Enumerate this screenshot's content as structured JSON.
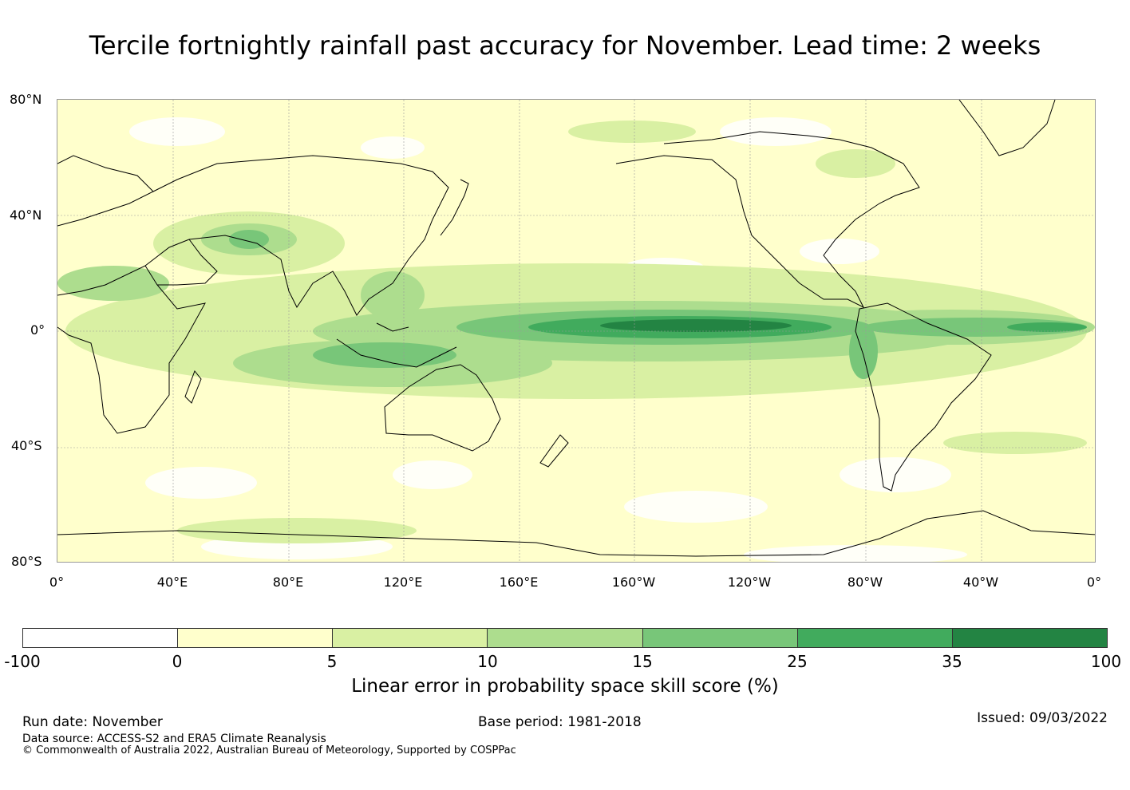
{
  "title": "Tercile fortnightly rainfall past accuracy for November. Lead time: 2 weeks",
  "map": {
    "lat_labels": [
      "80°N",
      "40°N",
      "0°",
      "40°S",
      "80°S"
    ],
    "lon_labels": [
      "0°",
      "40°E",
      "80°E",
      "120°E",
      "160°E",
      "160°W",
      "120°W",
      "80°W",
      "40°W",
      "0°"
    ]
  },
  "colorbar": {
    "ticks": [
      "-100",
      "0",
      "5",
      "10",
      "15",
      "25",
      "35",
      "100"
    ],
    "colors": [
      "#ffffff",
      "#ffffcc",
      "#d9f0a3",
      "#addd8e",
      "#78c679",
      "#41ab5d",
      "#238443"
    ],
    "label": "Linear error in probability space skill score (%)"
  },
  "footer": {
    "run_date": "Run date: November",
    "base_period": "Base period: 1981-2018",
    "issued": "Issued: 09/03/2022",
    "data_source": "Data source: ACCESS-S2 and ERA5 Climate Reanalysis",
    "copyright": "© Commonwealth of Australia 2022, Australian Bureau of Meteorology, Supported by COSPPac"
  }
}
